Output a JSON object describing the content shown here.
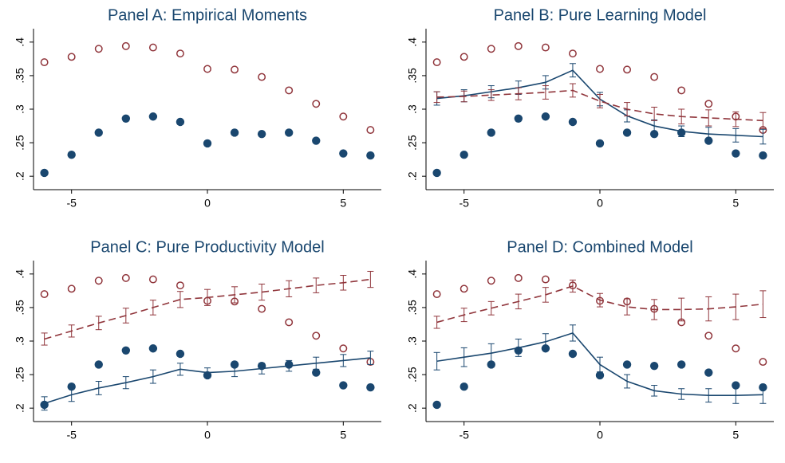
{
  "chart_data": [
    {
      "type": "scatter",
      "title": "Panel A: Empirical Moments",
      "x": [
        -6,
        -5,
        -4,
        -3,
        -2,
        -1,
        0,
        1,
        2,
        3,
        4,
        5,
        6
      ],
      "xlim": [
        -6.4,
        6.4
      ],
      "xticks": [
        -5,
        0,
        5
      ],
      "ylim": [
        0.18,
        0.42
      ],
      "yticks": [
        {
          "value": 0.2,
          "label": ".2"
        },
        {
          "value": 0.25,
          "label": ".25"
        },
        {
          "value": 0.3,
          "label": ".3"
        },
        {
          "value": 0.35,
          "label": ".35"
        },
        {
          "value": 0.4,
          "label": ".4"
        }
      ],
      "series": [
        {
          "color": "#90353b",
          "marker": "hollow",
          "line": "none",
          "values": [
            0.37,
            0.378,
            0.39,
            0.394,
            0.392,
            0.383,
            0.36,
            0.359,
            0.348,
            0.328,
            0.308,
            0.289,
            0.269
          ]
        },
        {
          "color": "#1a476f",
          "marker": "filled",
          "line": "none",
          "values": [
            0.205,
            0.232,
            0.265,
            0.286,
            0.289,
            0.281,
            0.249,
            0.265,
            0.263,
            0.265,
            0.253,
            0.234,
            0.231
          ]
        }
      ]
    },
    {
      "type": "scatter",
      "title": "Panel B: Pure Learning Model",
      "x": [
        -6,
        -5,
        -4,
        -3,
        -2,
        -1,
        0,
        1,
        2,
        3,
        4,
        5,
        6
      ],
      "xlim": [
        -6.4,
        6.4
      ],
      "xticks": [
        -5,
        0,
        5
      ],
      "ylim": [
        0.18,
        0.42
      ],
      "yticks": [
        {
          "value": 0.2,
          "label": ".2"
        },
        {
          "value": 0.25,
          "label": ".25"
        },
        {
          "value": 0.3,
          "label": ".3"
        },
        {
          "value": 0.35,
          "label": ".35"
        },
        {
          "value": 0.4,
          "label": ".4"
        }
      ],
      "series": [
        {
          "color": "#90353b",
          "marker": "hollow",
          "line": "none",
          "values": [
            0.37,
            0.378,
            0.39,
            0.394,
            0.392,
            0.383,
            0.36,
            0.359,
            0.348,
            0.328,
            0.308,
            0.289,
            0.269
          ]
        },
        {
          "color": "#1a476f",
          "marker": "filled",
          "line": "none",
          "values": [
            0.205,
            0.232,
            0.265,
            0.286,
            0.289,
            0.281,
            0.249,
            0.265,
            0.263,
            0.265,
            0.253,
            0.234,
            0.231
          ]
        },
        {
          "color": "#1a476f",
          "marker": "none",
          "line": "solid",
          "values": [
            0.316,
            0.32,
            0.326,
            0.332,
            0.34,
            0.358,
            0.315,
            0.29,
            0.275,
            0.267,
            0.263,
            0.261,
            0.259
          ],
          "errors": [
            0.01,
            0.009,
            0.009,
            0.01,
            0.01,
            0.01,
            0.01,
            0.009,
            0.009,
            0.008,
            0.01,
            0.01,
            0.011
          ]
        },
        {
          "color": "#90353b",
          "marker": "none",
          "line": "dash",
          "values": [
            0.318,
            0.319,
            0.321,
            0.323,
            0.325,
            0.328,
            0.312,
            0.3,
            0.293,
            0.289,
            0.287,
            0.285,
            0.283
          ],
          "errors": [
            0.008,
            0.008,
            0.008,
            0.009,
            0.01,
            0.01,
            0.01,
            0.01,
            0.01,
            0.011,
            0.012,
            0.011,
            0.012
          ]
        }
      ]
    },
    {
      "type": "scatter",
      "title": "Panel C: Pure Productivity Model",
      "x": [
        -6,
        -5,
        -4,
        -3,
        -2,
        -1,
        0,
        1,
        2,
        3,
        4,
        5,
        6
      ],
      "xlim": [
        -6.4,
        6.4
      ],
      "xticks": [
        -5,
        0,
        5
      ],
      "ylim": [
        0.18,
        0.42
      ],
      "yticks": [
        {
          "value": 0.2,
          "label": ".2"
        },
        {
          "value": 0.25,
          "label": ".25"
        },
        {
          "value": 0.3,
          "label": ".3"
        },
        {
          "value": 0.35,
          "label": ".35"
        },
        {
          "value": 0.4,
          "label": ".4"
        }
      ],
      "series": [
        {
          "color": "#90353b",
          "marker": "hollow",
          "line": "none",
          "values": [
            0.37,
            0.378,
            0.39,
            0.394,
            0.392,
            0.383,
            0.36,
            0.359,
            0.348,
            0.328,
            0.308,
            0.289,
            0.269
          ]
        },
        {
          "color": "#1a476f",
          "marker": "filled",
          "line": "none",
          "values": [
            0.205,
            0.232,
            0.265,
            0.286,
            0.289,
            0.281,
            0.249,
            0.265,
            0.263,
            0.265,
            0.253,
            0.234,
            0.231
          ]
        },
        {
          "color": "#1a476f",
          "marker": "none",
          "line": "solid",
          "values": [
            0.207,
            0.22,
            0.23,
            0.238,
            0.247,
            0.258,
            0.253,
            0.255,
            0.259,
            0.263,
            0.267,
            0.271,
            0.275
          ],
          "errors": [
            0.01,
            0.01,
            0.01,
            0.009,
            0.01,
            0.009,
            0.007,
            0.008,
            0.008,
            0.008,
            0.009,
            0.009,
            0.01
          ]
        },
        {
          "color": "#90353b",
          "marker": "none",
          "line": "dash",
          "values": [
            0.303,
            0.315,
            0.327,
            0.338,
            0.35,
            0.362,
            0.365,
            0.369,
            0.373,
            0.378,
            0.383,
            0.387,
            0.392
          ],
          "errors": [
            0.009,
            0.009,
            0.01,
            0.011,
            0.011,
            0.012,
            0.012,
            0.012,
            0.012,
            0.012,
            0.011,
            0.011,
            0.012
          ]
        }
      ]
    },
    {
      "type": "scatter",
      "title": "Panel D: Combined Model",
      "x": [
        -6,
        -5,
        -4,
        -3,
        -2,
        -1,
        0,
        1,
        2,
        3,
        4,
        5,
        6
      ],
      "xlim": [
        -6.4,
        6.4
      ],
      "xticks": [
        -5,
        0,
        5
      ],
      "ylim": [
        0.18,
        0.42
      ],
      "yticks": [
        {
          "value": 0.2,
          "label": ".2"
        },
        {
          "value": 0.25,
          "label": ".25"
        },
        {
          "value": 0.3,
          "label": ".3"
        },
        {
          "value": 0.35,
          "label": ".35"
        },
        {
          "value": 0.4,
          "label": ".4"
        }
      ],
      "series": [
        {
          "color": "#90353b",
          "marker": "hollow",
          "line": "none",
          "values": [
            0.37,
            0.378,
            0.39,
            0.394,
            0.392,
            0.383,
            0.36,
            0.359,
            0.348,
            0.328,
            0.308,
            0.289,
            0.269
          ]
        },
        {
          "color": "#1a476f",
          "marker": "filled",
          "line": "none",
          "values": [
            0.205,
            0.232,
            0.265,
            0.286,
            0.289,
            0.281,
            0.249,
            0.265,
            0.263,
            0.265,
            0.253,
            0.234,
            0.231
          ]
        },
        {
          "color": "#1a476f",
          "marker": "none",
          "line": "solid",
          "values": [
            0.27,
            0.276,
            0.282,
            0.29,
            0.299,
            0.312,
            0.265,
            0.24,
            0.226,
            0.221,
            0.219,
            0.219,
            0.22
          ],
          "errors": [
            0.013,
            0.014,
            0.014,
            0.013,
            0.012,
            0.012,
            0.011,
            0.01,
            0.008,
            0.008,
            0.01,
            0.012,
            0.013
          ]
        },
        {
          "color": "#90353b",
          "marker": "none",
          "line": "dash",
          "values": [
            0.328,
            0.339,
            0.349,
            0.359,
            0.369,
            0.382,
            0.361,
            0.351,
            0.347,
            0.347,
            0.348,
            0.351,
            0.355
          ],
          "errors": [
            0.009,
            0.01,
            0.01,
            0.011,
            0.011,
            0.009,
            0.01,
            0.012,
            0.015,
            0.017,
            0.018,
            0.019,
            0.02
          ]
        }
      ]
    }
  ]
}
